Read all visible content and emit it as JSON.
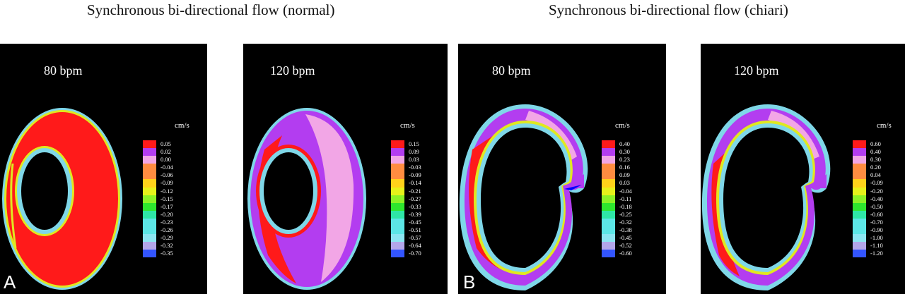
{
  "titles": {
    "left": "Synchronous bi-directional flow (normal)",
    "right": "Synchronous bi-directional flow (chiari)"
  },
  "legend_colors": [
    "#ff1a1a",
    "#b33df0",
    "#f2a6e6",
    "#ff8c40",
    "#ffd21a",
    "#e6f21a",
    "#8cf226",
    "#2ee62e",
    "#2ee6a6",
    "#5ce6e6",
    "#8ce6f2",
    "#b3a6ea",
    "#3355ff"
  ],
  "panels": [
    {
      "id": "A1",
      "bpm": "80 bpm",
      "unit": "cm/s",
      "letter": "A",
      "legend_values": [
        "0.05",
        "0.02",
        "0.00",
        "-0.04",
        "-0.06",
        "-0.09",
        "-0.12",
        "-0.15",
        "-0.17",
        "-0.20",
        "-0.23",
        "-0.26",
        "-0.29",
        "-0.32",
        "-0.35"
      ]
    },
    {
      "id": "A2",
      "bpm": "120 bpm",
      "unit": "cm/s",
      "letter": "",
      "legend_values": [
        "0.15",
        "0.09",
        "0.03",
        "-0.03",
        "-0.09",
        "-0.14",
        "-0.21",
        "-0.27",
        "-0.33",
        "-0.39",
        "-0.45",
        "-0.51",
        "-0.57",
        "-0.64",
        "-0.70"
      ]
    },
    {
      "id": "B1",
      "bpm": "80 bpm",
      "unit": "cm/s",
      "letter": "B",
      "legend_values": [
        "0.40",
        "0.30",
        "0.23",
        "0.16",
        "0.09",
        "0.03",
        "-0.04",
        "-0.11",
        "-0.18",
        "-0.25",
        "-0.32",
        "-0.38",
        "-0.45",
        "-0.52",
        "-0.60"
      ]
    },
    {
      "id": "B2",
      "bpm": "120 bpm",
      "unit": "cm/s",
      "letter": "",
      "legend_values": [
        "0.60",
        "0.40",
        "0.30",
        "0.20",
        "0.04",
        "-0.09",
        "-0.20",
        "-0.40",
        "-0.50",
        "-0.60",
        "-0.70",
        "-0.90",
        "-1.00",
        "-1.10",
        "-1.20"
      ]
    }
  ]
}
